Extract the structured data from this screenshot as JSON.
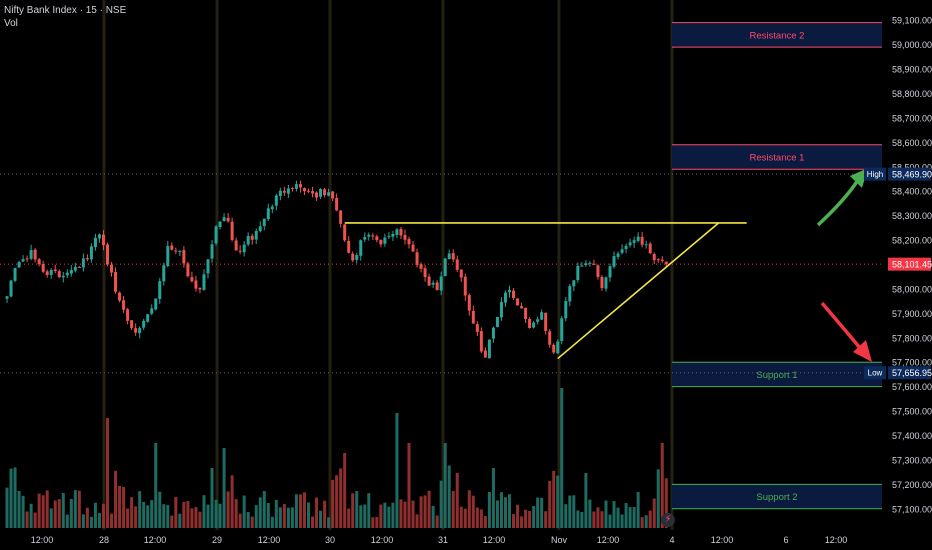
{
  "header": {
    "title": "Nifty Bank Index · 15 · NSE",
    "volume_label": "Vol"
  },
  "colors": {
    "background": "#000000",
    "up": "#26a69a",
    "down": "#ef5350",
    "up_vol": "#1f6b62",
    "down_vol": "#8f2f2e",
    "axis_text": "#d1d4dc",
    "yellow": "#f5e642",
    "resistance": "#ff4a68",
    "support": "#4caf50",
    "zone_fill": "#0b1a3f",
    "current_price": "#f23645",
    "label_box": "#0d2a5c"
  },
  "chart_data": {
    "type": "candlestick",
    "title": "Nifty Bank Index · 15 · NSE",
    "x_ticks": [
      "12:00",
      "28",
      "12:00",
      "29",
      "12:00",
      "30",
      "12:00",
      "31",
      "12:00",
      "Nov",
      "12:00",
      "4",
      "12:00",
      "6",
      "12:00"
    ],
    "y_ticks": [
      "59,100.00",
      "59,000.00",
      "58,900.00",
      "58,800.00",
      "58,700.00",
      "58,600.00",
      "58,500.00",
      "58,400.00",
      "58,300.00",
      "58,200.00",
      "58,100.00",
      "58,000.00",
      "57,900.00",
      "57,800.00",
      "57,700.00",
      "57,600.00",
      "57,500.00",
      "57,400.00",
      "57,300.00",
      "57,200.00",
      "57,100.00"
    ],
    "ylim": [
      57050,
      59150
    ],
    "n_bars": 165,
    "close_anchors": [
      {
        "bar": 0,
        "close": 57990
      },
      {
        "bar": 3,
        "close": 58120
      },
      {
        "bar": 6,
        "close": 58140
      },
      {
        "bar": 9,
        "close": 58080
      },
      {
        "bar": 13,
        "close": 58050
      },
      {
        "bar": 16,
        "close": 58090
      },
      {
        "bar": 20,
        "close": 58120
      },
      {
        "bar": 23,
        "close": 58240
      },
      {
        "bar": 27,
        "close": 57990
      },
      {
        "bar": 30,
        "close": 57880
      },
      {
        "bar": 33,
        "close": 57820
      },
      {
        "bar": 37,
        "close": 57950
      },
      {
        "bar": 40,
        "close": 58180
      },
      {
        "bar": 43,
        "close": 58150
      },
      {
        "bar": 46,
        "close": 58030
      },
      {
        "bar": 48,
        "close": 58000
      },
      {
        "bar": 51,
        "close": 58200
      },
      {
        "bar": 54,
        "close": 58310
      },
      {
        "bar": 57,
        "close": 58150
      },
      {
        "bar": 59,
        "close": 58180
      },
      {
        "bar": 62,
        "close": 58230
      },
      {
        "bar": 66,
        "close": 58350
      },
      {
        "bar": 70,
        "close": 58430
      },
      {
        "bar": 73,
        "close": 58420
      },
      {
        "bar": 76,
        "close": 58390
      },
      {
        "bar": 79,
        "close": 58390
      },
      {
        "bar": 81,
        "close": 58380
      },
      {
        "bar": 83,
        "close": 58250
      },
      {
        "bar": 86,
        "close": 58100
      },
      {
        "bar": 89,
        "close": 58220
      },
      {
        "bar": 93,
        "close": 58180
      },
      {
        "bar": 97,
        "close": 58250
      },
      {
        "bar": 100,
        "close": 58180
      },
      {
        "bar": 104,
        "close": 58050
      },
      {
        "bar": 107,
        "close": 58000
      },
      {
        "bar": 110,
        "close": 58160
      },
      {
        "bar": 113,
        "close": 58050
      },
      {
        "bar": 116,
        "close": 57850
      },
      {
        "bar": 119,
        "close": 57720
      },
      {
        "bar": 122,
        "close": 57900
      },
      {
        "bar": 124,
        "close": 58000
      },
      {
        "bar": 127,
        "close": 57950
      },
      {
        "bar": 130,
        "close": 57850
      },
      {
        "bar": 133,
        "close": 57900
      },
      {
        "bar": 136,
        "close": 57720
      },
      {
        "bar": 139,
        "close": 57950
      },
      {
        "bar": 142,
        "close": 58100
      },
      {
        "bar": 145,
        "close": 58120
      },
      {
        "bar": 148,
        "close": 58000
      },
      {
        "bar": 151,
        "close": 58140
      },
      {
        "bar": 154,
        "close": 58180
      },
      {
        "bar": 157,
        "close": 58220
      },
      {
        "bar": 160,
        "close": 58150
      },
      {
        "bar": 164,
        "close": 58101
      }
    ],
    "zones": [
      {
        "label": "Resistance 2",
        "top": 59090,
        "bottom": 58990,
        "color": "#ff4a68"
      },
      {
        "label": "Resistance 1",
        "top": 58590,
        "bottom": 58490,
        "color": "#ff4a68"
      },
      {
        "label": "Support 1",
        "top": 57700,
        "bottom": 57600,
        "color": "#4caf50"
      },
      {
        "label": "Support 2",
        "top": 57200,
        "bottom": 57100,
        "color": "#4caf50"
      }
    ],
    "price_labels": [
      {
        "tag": "High",
        "value": "58,469.90",
        "price": 58469.9
      },
      {
        "tag": "",
        "value": "58,101.45",
        "price": 58101.45
      },
      {
        "tag": "Low",
        "value": "57,656.95",
        "price": 57656.95
      }
    ],
    "trendlines": [
      {
        "from_bar": 84,
        "to_bar": 184,
        "from_price": 58270,
        "to_price": 58270
      },
      {
        "from_bar": 137,
        "to_bar": 177,
        "from_price": 57715,
        "to_price": 58270
      }
    ]
  }
}
